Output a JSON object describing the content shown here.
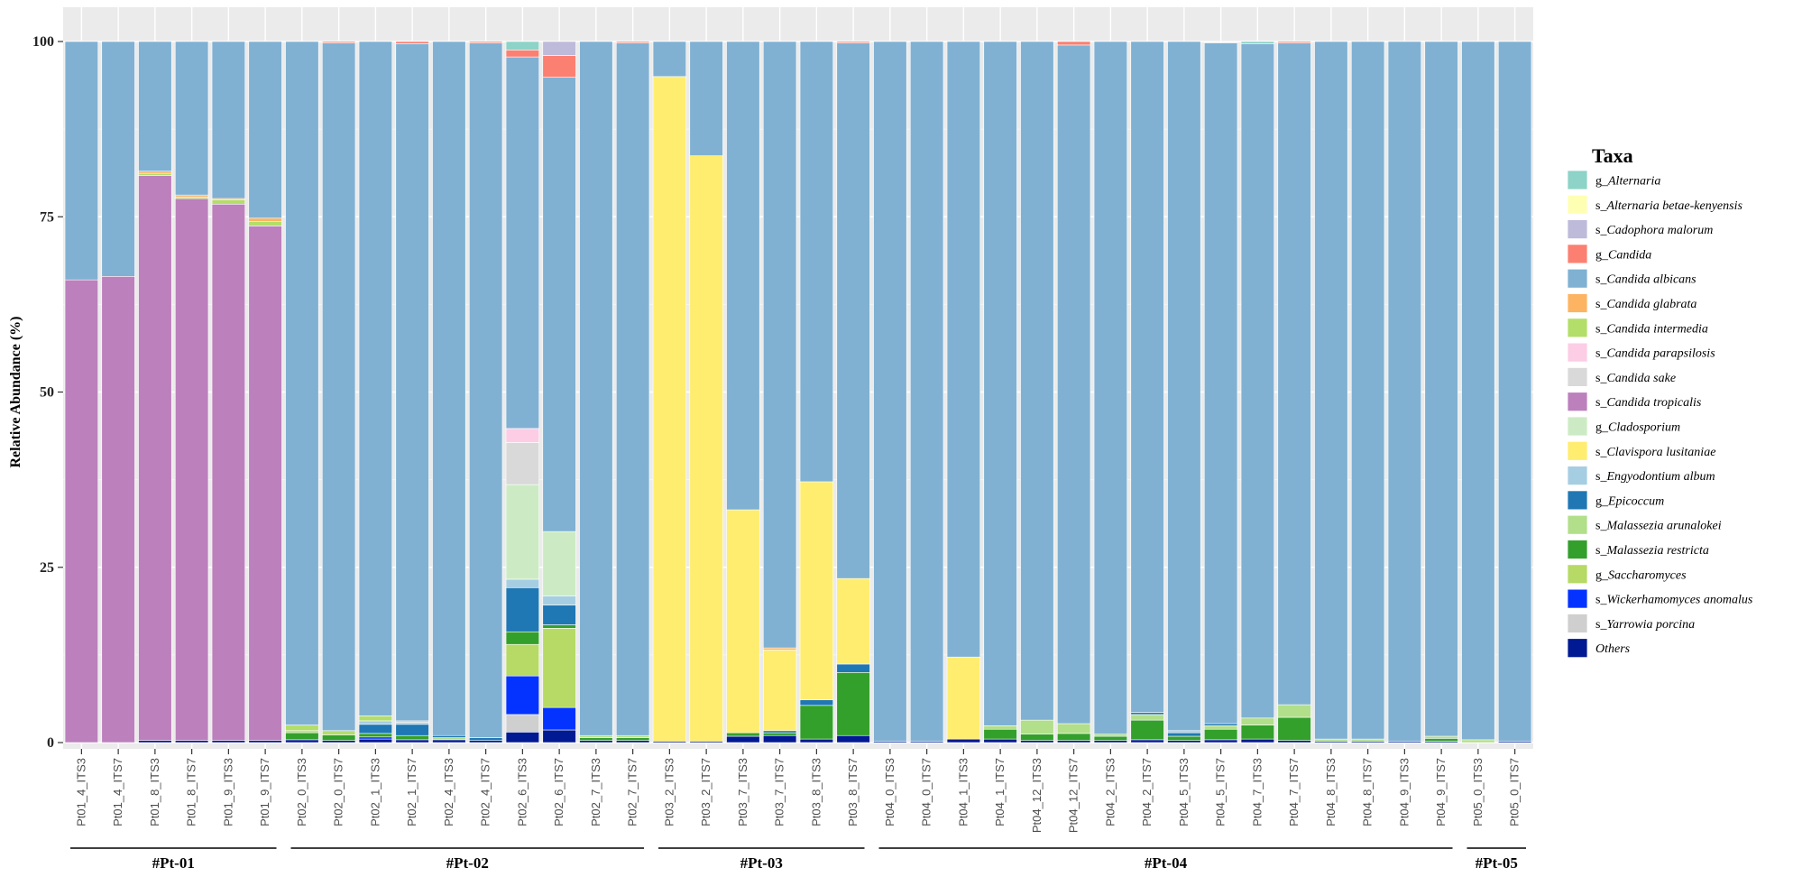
{
  "chart_data": {
    "type": "bar",
    "stacked": true,
    "ylabel": "Relative Abundance (%)",
    "ylim": [
      0,
      100
    ],
    "yticks": [
      0,
      25,
      50,
      75,
      100
    ],
    "grid": true,
    "legend_position": "right",
    "legend_title": "Taxa",
    "taxa": [
      {
        "name": "g_Alternaria",
        "color": "#8DD3C7"
      },
      {
        "name": "s_Alternaria betae-kenyensis",
        "color": "#FFFFB3"
      },
      {
        "name": "s_Cadophora malorum",
        "color": "#BEBADA"
      },
      {
        "name": "g_Candida",
        "color": "#FB8072"
      },
      {
        "name": "s_Candida albicans",
        "color": "#80B1D3"
      },
      {
        "name": "s_Candida glabrata",
        "color": "#FDB462"
      },
      {
        "name": "s_Candida intermedia",
        "color": "#B3DE69"
      },
      {
        "name": "s_Candida parapsilosis",
        "color": "#FCCDE5"
      },
      {
        "name": "s_Candida sake",
        "color": "#D9D9D9"
      },
      {
        "name": "s_Candida tropicalis",
        "color": "#BC80BD"
      },
      {
        "name": "g_Cladosporium",
        "color": "#CCEBC5"
      },
      {
        "name": "s_Clavispora lusitaniae",
        "color": "#FFED6F"
      },
      {
        "name": "s_Engyodontium album",
        "color": "#A6CEE3"
      },
      {
        "name": "g_Epicoccum",
        "color": "#1F78B4"
      },
      {
        "name": "s_Malassezia arunalokei",
        "color": "#B2DF8A"
      },
      {
        "name": "s_Malassezia restricta",
        "color": "#33A02C"
      },
      {
        "name": "g_Saccharomyces",
        "color": "#B6DA65"
      },
      {
        "name": "s_Wickerhamomyces anomalus",
        "color": "#0433FF"
      },
      {
        "name": "s_Yarrowia porcina",
        "color": "#CFCFCF"
      },
      {
        "name": "Others",
        "color": "#011993"
      }
    ],
    "groups": [
      {
        "label": "#Pt-01",
        "start": 0,
        "end": 5
      },
      {
        "label": "#Pt-02",
        "start": 6,
        "end": 15
      },
      {
        "label": "#Pt-03",
        "start": 16,
        "end": 21
      },
      {
        "label": "#Pt-04",
        "start": 22,
        "end": 37
      },
      {
        "label": "#Pt-05",
        "start": 38,
        "end": 39
      }
    ],
    "samples": [
      {
        "name": "Pt01_4_ITS3",
        "values": {
          "s_Candida tropicalis": 66,
          "s_Candida albicans": 34
        }
      },
      {
        "name": "Pt01_4_ITS7",
        "values": {
          "s_Candida tropicalis": 66.5,
          "s_Candida albicans": 33.5
        }
      },
      {
        "name": "Pt01_8_ITS3",
        "values": {
          "Others": 0.3,
          "s_Candida intermedia": 0.3,
          "s_Candida tropicalis": 80.6,
          "s_Candida glabrata": 0.3,
          "s_Candida albicans": 18.5
        }
      },
      {
        "name": "Pt01_8_ITS7",
        "values": {
          "Others": 0.3,
          "s_Candida intermedia": 0.2,
          "s_Candida tropicalis": 77.3,
          "s_Candida glabrata": 0.3,
          "s_Candida albicans": 21.9
        }
      },
      {
        "name": "Pt01_9_ITS3",
        "values": {
          "Others": 0.3,
          "s_Candida intermedia": 0.6,
          "s_Candida tropicalis": 76.5,
          "s_Candida glabrata": 0.2,
          "s_Candida albicans": 22.4
        }
      },
      {
        "name": "Pt01_9_ITS7",
        "values": {
          "Others": 0.3,
          "s_Candida intermedia": 0.6,
          "s_Candida tropicalis": 73.4,
          "s_Candida glabrata": 0.5,
          "s_Candida albicans": 25.2
        }
      },
      {
        "name": "Pt02_0_ITS3",
        "values": {
          "Others": 0.4,
          "s_Malassezia restricta": 1.0,
          "s_Candida intermedia": 0.8,
          "s_Malassezia arunalokei": 0.3,
          "s_Candida albicans": 97.5
        }
      },
      {
        "name": "Pt02_0_ITS7",
        "values": {
          "Others": 0.3,
          "s_Malassezia restricta": 0.8,
          "s_Candida intermedia": 0.6,
          "s_Candida albicans": 98.1,
          "g_Candida": 0.2
        }
      },
      {
        "name": "Pt02_1_ITS3",
        "values": {
          "Others": 0.5,
          "s_Wickerhamomyces anomalus": 0.3,
          "s_Malassezia restricta": 0.5,
          "g_Epicoccum": 1.3,
          "s_Engyodontium album": 0.5,
          "s_Candida intermedia": 0.7,
          "s_Candida albicans": 96.2
        }
      },
      {
        "name": "Pt02_1_ITS7",
        "values": {
          "Others": 0.4,
          "s_Malassezia restricta": 0.6,
          "g_Epicoccum": 1.6,
          "s_Engyodontium album": 0.3,
          "s_Candida albicans": 96.6,
          "g_Candida": 0.3,
          "s_Candida glabrata": 0.2
        }
      },
      {
        "name": "Pt02_4_ITS3",
        "values": {
          "Others": 0.4,
          "g_Epicoccum": 0.3,
          "s_Malassezia arunalokei": 0.3,
          "s_Candida albicans": 99.0
        }
      },
      {
        "name": "Pt02_4_ITS7",
        "values": {
          "Others": 0.3,
          "g_Epicoccum": 0.4,
          "s_Candida albicans": 99.1,
          "g_Candida": 0.2
        }
      },
      {
        "name": "Pt02_6_ITS3",
        "values": {
          "Others": 1.5,
          "s_Yarrowia porcina": 2.5,
          "s_Wickerhamomyces anomalus": 5.5,
          "s_Malassezia restricta": 1.8,
          "g_Epicoccum": 6.3,
          "s_Engyodontium album": 1.2,
          "g_Cladosporium": 13.5,
          "s_Candida sake": 6.0,
          "s_Candida parapsilosis": 2.0,
          "g_Saccharomyces": 4.5,
          "s_Candida albicans": 53.0,
          "g_Candida": 1.0,
          "g_Alternaria": 1.2
        }
      },
      {
        "name": "Pt02_6_ITS7",
        "values": {
          "Others": 1.8,
          "s_Wickerhamomyces anomalus": 3.2,
          "g_Saccharomyces": 11.3,
          "s_Malassezia restricta": 0.5,
          "g_Epicoccum": 2.8,
          "s_Engyodontium album": 1.3,
          "g_Cladosporium": 9.2,
          "s_Candida albicans": 64.8,
          "g_Candida": 3.1,
          "s_Cadophora malorum": 2.0
        }
      },
      {
        "name": "Pt02_7_ITS3",
        "values": {
          "Others": 0.3,
          "s_Malassezia restricta": 0.4,
          "s_Malassezia arunalokei": 0.3,
          "s_Candida albicans": 99.0
        }
      },
      {
        "name": "Pt02_7_ITS7",
        "values": {
          "Others": 0.3,
          "s_Malassezia restricta": 0.4,
          "s_Malassezia arunalokei": 0.3,
          "s_Candida albicans": 98.8,
          "g_Candida": 0.2
        }
      },
      {
        "name": "Pt03_2_ITS3",
        "values": {
          "Others": 0.2,
          "s_Clavispora lusitaniae": 94.8,
          "s_Candida albicans": 5.0
        }
      },
      {
        "name": "Pt03_2_ITS7",
        "values": {
          "Others": 0.2,
          "s_Clavispora lusitaniae": 83.5,
          "s_Candida albicans": 16.3
        }
      },
      {
        "name": "Pt03_7_ITS3",
        "values": {
          "Others": 0.9,
          "s_Malassezia restricta": 0.5,
          "s_Clavispora lusitaniae": 31.8,
          "s_Candida albicans": 66.8
        }
      },
      {
        "name": "Pt03_7_ITS7",
        "values": {
          "Others": 1.0,
          "s_Malassezia restricta": 0.4,
          "g_Epicoccum": 0.3,
          "s_Clavispora lusitaniae": 11.5,
          "s_Candida albicans": 86.5,
          "s_Candida glabrata": 0.3
        }
      },
      {
        "name": "Pt03_8_ITS3",
        "values": {
          "Others": 0.5,
          "s_Malassezia restricta": 4.8,
          "g_Epicoccum": 0.8,
          "s_Clavispora lusitaniae": 31.1,
          "s_Candida albicans": 62.8
        }
      },
      {
        "name": "Pt03_8_ITS7",
        "values": {
          "Others": 1.0,
          "s_Malassezia restricta": 9.0,
          "g_Epicoccum": 1.2,
          "s_Clavispora lusitaniae": 12.2,
          "s_Candida albicans": 76.4,
          "g_Candida": 0.2
        }
      },
      {
        "name": "Pt04_0_ITS3",
        "values": {
          "Others": 0.2,
          "s_Candida albicans": 99.8
        }
      },
      {
        "name": "Pt04_0_ITS7",
        "values": {
          "Others": 0.2,
          "s_Candida albicans": 99.8
        }
      },
      {
        "name": "Pt04_1_ITS3",
        "values": {
          "Others": 0.5,
          "s_Clavispora lusitaniae": 11.7,
          "s_Candida albicans": 87.8
        }
      },
      {
        "name": "Pt04_1_ITS7",
        "values": {
          "Others": 0.5,
          "s_Malassezia restricta": 1.4,
          "s_Malassezia arunalokei": 0.5,
          "s_Candida albicans": 97.6
        }
      },
      {
        "name": "Pt04_12_ITS3",
        "values": {
          "Others": 0.3,
          "s_Malassezia restricta": 0.9,
          "s_Malassezia arunalokei": 2.0,
          "s_Candida albicans": 96.8
        }
      },
      {
        "name": "Pt04_12_ITS7",
        "values": {
          "Others": 0.3,
          "s_Malassezia restricta": 1.0,
          "s_Malassezia arunalokei": 1.4,
          "s_Candida albicans": 96.8,
          "g_Candida": 0.5
        }
      },
      {
        "name": "Pt04_2_ITS3",
        "values": {
          "Others": 0.3,
          "s_Malassezia restricta": 0.6,
          "s_Malassezia arunalokei": 0.3,
          "s_Candida albicans": 98.8
        }
      },
      {
        "name": "Pt04_2_ITS7",
        "values": {
          "Others": 0.4,
          "s_Malassezia restricta": 2.8,
          "s_Malassezia arunalokei": 0.8,
          "g_Epicoccum": 0.3,
          "s_Candida albicans": 95.7
        }
      },
      {
        "name": "Pt04_5_ITS3",
        "values": {
          "Others": 0.3,
          "s_Malassezia restricta": 0.6,
          "g_Epicoccum": 0.5,
          "s_Engyodontium album": 0.3,
          "s_Candida albicans": 98.3
        }
      },
      {
        "name": "Pt04_5_ITS7",
        "values": {
          "Others": 0.4,
          "s_Malassezia restricta": 1.5,
          "s_Malassezia arunalokei": 0.5,
          "g_Epicoccum": 0.3,
          "s_Candida albicans": 97.1
        }
      },
      {
        "name": "Pt04_7_ITS3",
        "values": {
          "Others": 0.5,
          "s_Malassezia restricta": 2.0,
          "s_Malassezia arunalokei": 1.0,
          "s_Candida albicans": 96.2,
          "g_Alternaria": 0.3
        }
      },
      {
        "name": "Pt04_7_ITS7",
        "values": {
          "Others": 0.3,
          "s_Malassezia restricta": 3.3,
          "s_Malassezia arunalokei": 1.8,
          "s_Candida albicans": 94.4,
          "g_Candida": 0.2
        }
      },
      {
        "name": "Pt04_8_ITS3",
        "values": {
          "Others": 0.2,
          "s_Malassezia arunalokei": 0.3,
          "s_Candida albicans": 99.5
        }
      },
      {
        "name": "Pt04_8_ITS7",
        "values": {
          "Others": 0.2,
          "s_Malassezia arunalokei": 0.3,
          "s_Candida albicans": 99.5
        }
      },
      {
        "name": "Pt04_9_ITS3",
        "values": {
          "Others": 0.2,
          "s_Candida albicans": 99.8
        }
      },
      {
        "name": "Pt04_9_ITS7",
        "values": {
          "Others": 0.2,
          "s_Malassezia restricta": 0.4,
          "s_Malassezia arunalokei": 0.3,
          "s_Candida albicans": 99.1
        }
      },
      {
        "name": "Pt05_0_ITS3",
        "values": {
          "s_Malassezia arunalokei": 0.4,
          "s_Candida albicans": 99.6
        }
      },
      {
        "name": "Pt05_0_ITS7",
        "values": {
          "Others": 0.2,
          "s_Candida albicans": 99.8
        }
      }
    ]
  }
}
